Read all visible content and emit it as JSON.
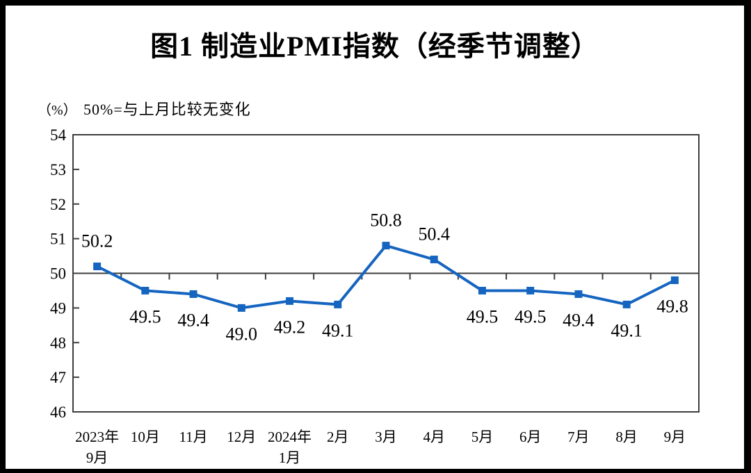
{
  "page": {
    "title": "图1 制造业PMI指数（经季节调整）",
    "unit_label": "（%）",
    "reference_note": "50%=与上月比较无变化"
  },
  "chart_data": {
    "type": "line",
    "title": "图1 制造业PMI指数（经季节调整）",
    "subtitle": "50%=与上月比较无变化",
    "ylabel": "（%）",
    "categories": [
      [
        "2023年",
        "9月"
      ],
      [
        "10月"
      ],
      [
        "11月"
      ],
      [
        "12月"
      ],
      [
        "2024年",
        "1月"
      ],
      [
        "2月"
      ],
      [
        "3月"
      ],
      [
        "4月"
      ],
      [
        "5月"
      ],
      [
        "6月"
      ],
      [
        "7月"
      ],
      [
        "8月"
      ],
      [
        "9月"
      ]
    ],
    "series": [
      {
        "name": "制造业PMI",
        "values": [
          50.2,
          49.5,
          49.4,
          49.0,
          49.2,
          49.1,
          50.8,
          50.4,
          49.5,
          49.5,
          49.4,
          49.1,
          49.8
        ]
      }
    ],
    "data_label_positions": [
      "above",
      "below",
      "below",
      "below",
      "below",
      "below",
      "above",
      "above",
      "below",
      "below",
      "below",
      "below",
      "below"
    ],
    "ylim": [
      46,
      54
    ],
    "ytick_step": 1,
    "reference_line": 50,
    "grid": false,
    "legend_position": "none",
    "line_color": "#1565C0",
    "marker": "square",
    "axis_color": "#3d3d3d",
    "text_color": "#000000"
  }
}
